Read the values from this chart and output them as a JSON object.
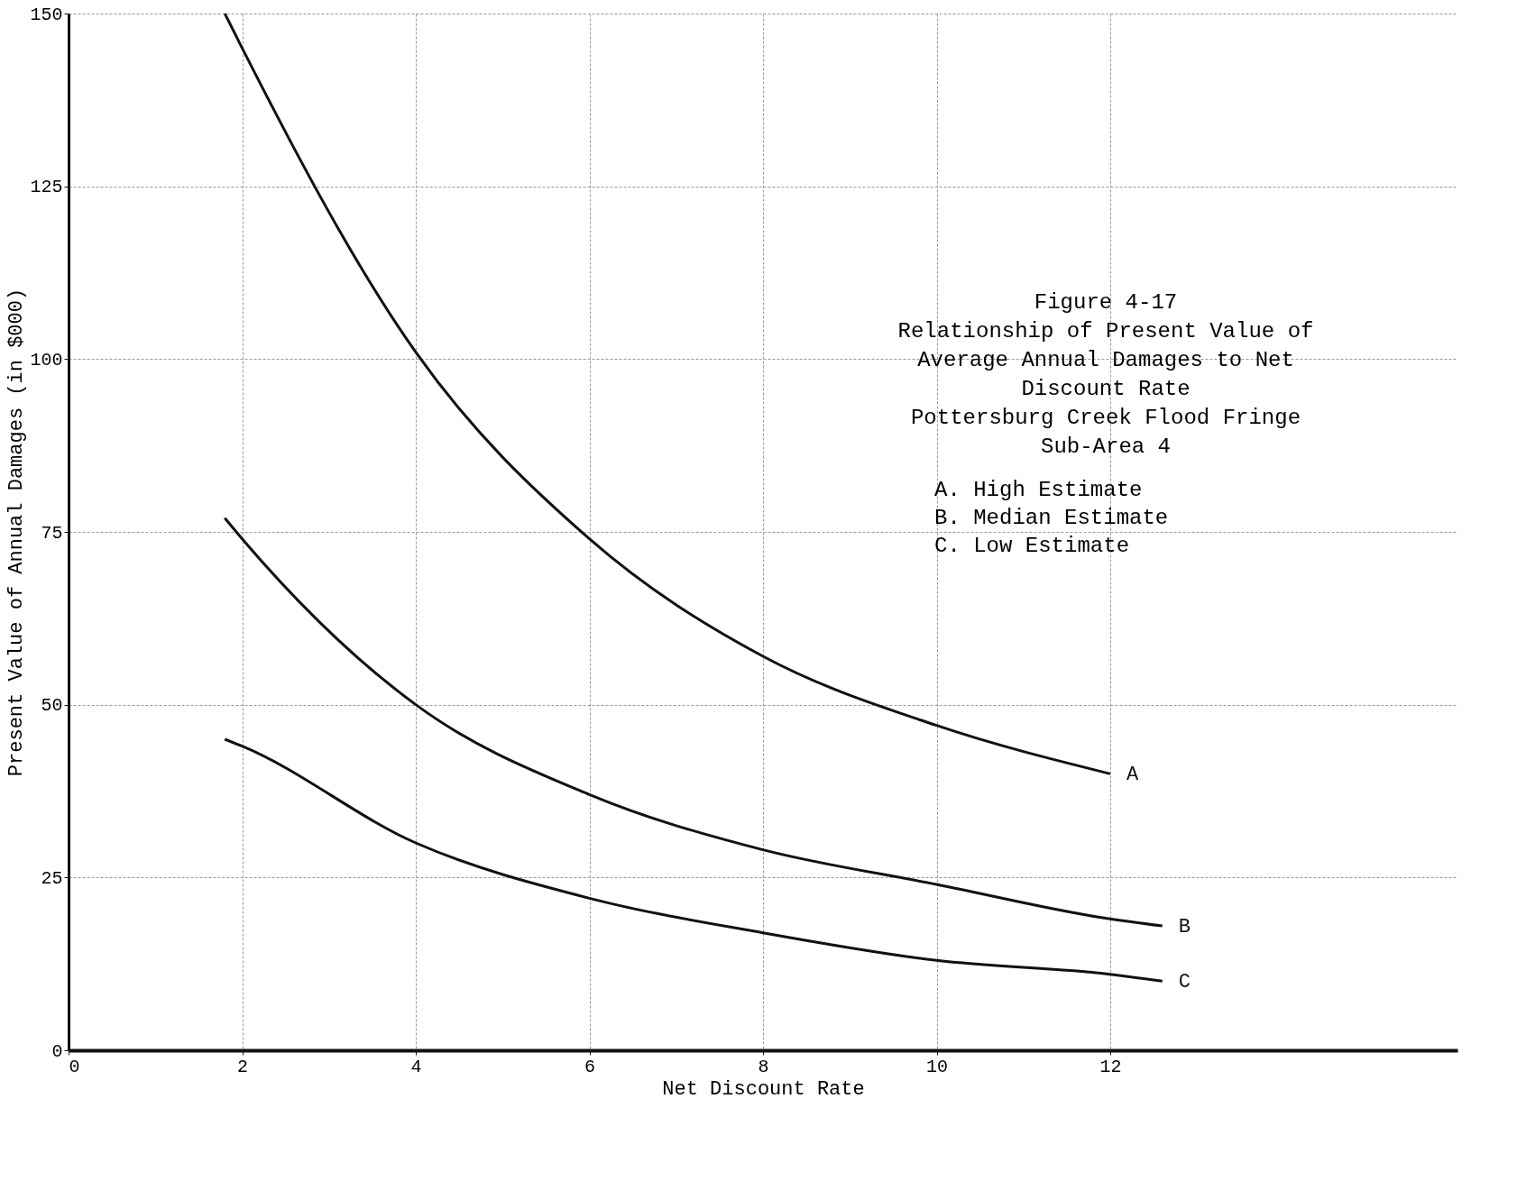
{
  "chart_data": {
    "type": "line",
    "title": "Figure 4-17",
    "subtitle": "Relationship of Present Value of\nAverage Annual Damages to Net\nDiscount Rate\nPottersburg Creek Flood Fringe\nSub-Area 4",
    "xlabel": "Net Discount Rate",
    "ylabel": "Present Value of Annual Damages (in $000)",
    "series": [
      {
        "name": "A",
        "color": "#111111",
        "x": [
          1.8,
          2,
          4,
          6,
          8,
          10,
          12
        ],
        "values": [
          150,
          145,
          101,
          74,
          57,
          47,
          40
        ]
      },
      {
        "name": "B",
        "color": "#111111",
        "x": [
          1.8,
          2,
          4,
          6,
          8,
          10,
          12,
          12.6
        ],
        "values": [
          77,
          74,
          50,
          37,
          29,
          24,
          19,
          18
        ]
      },
      {
        "name": "C",
        "color": "#111111",
        "x": [
          1.8,
          2,
          4,
          6,
          8,
          10,
          12,
          12.6
        ],
        "values": [
          45,
          44,
          30,
          22,
          17,
          13,
          11,
          10
        ]
      }
    ],
    "annotations": [
      "A.  High Estimate",
      "B.  Median Estimate",
      "C.  Low Estimate"
    ],
    "xlim": [
      0,
      16
    ],
    "xticks": [
      0,
      2,
      4,
      6,
      8,
      10,
      12
    ],
    "ylim": [
      0,
      150
    ],
    "yticks": [
      0,
      25,
      50,
      75,
      100,
      125,
      150
    ],
    "grid": true,
    "line_style": "solid"
  }
}
